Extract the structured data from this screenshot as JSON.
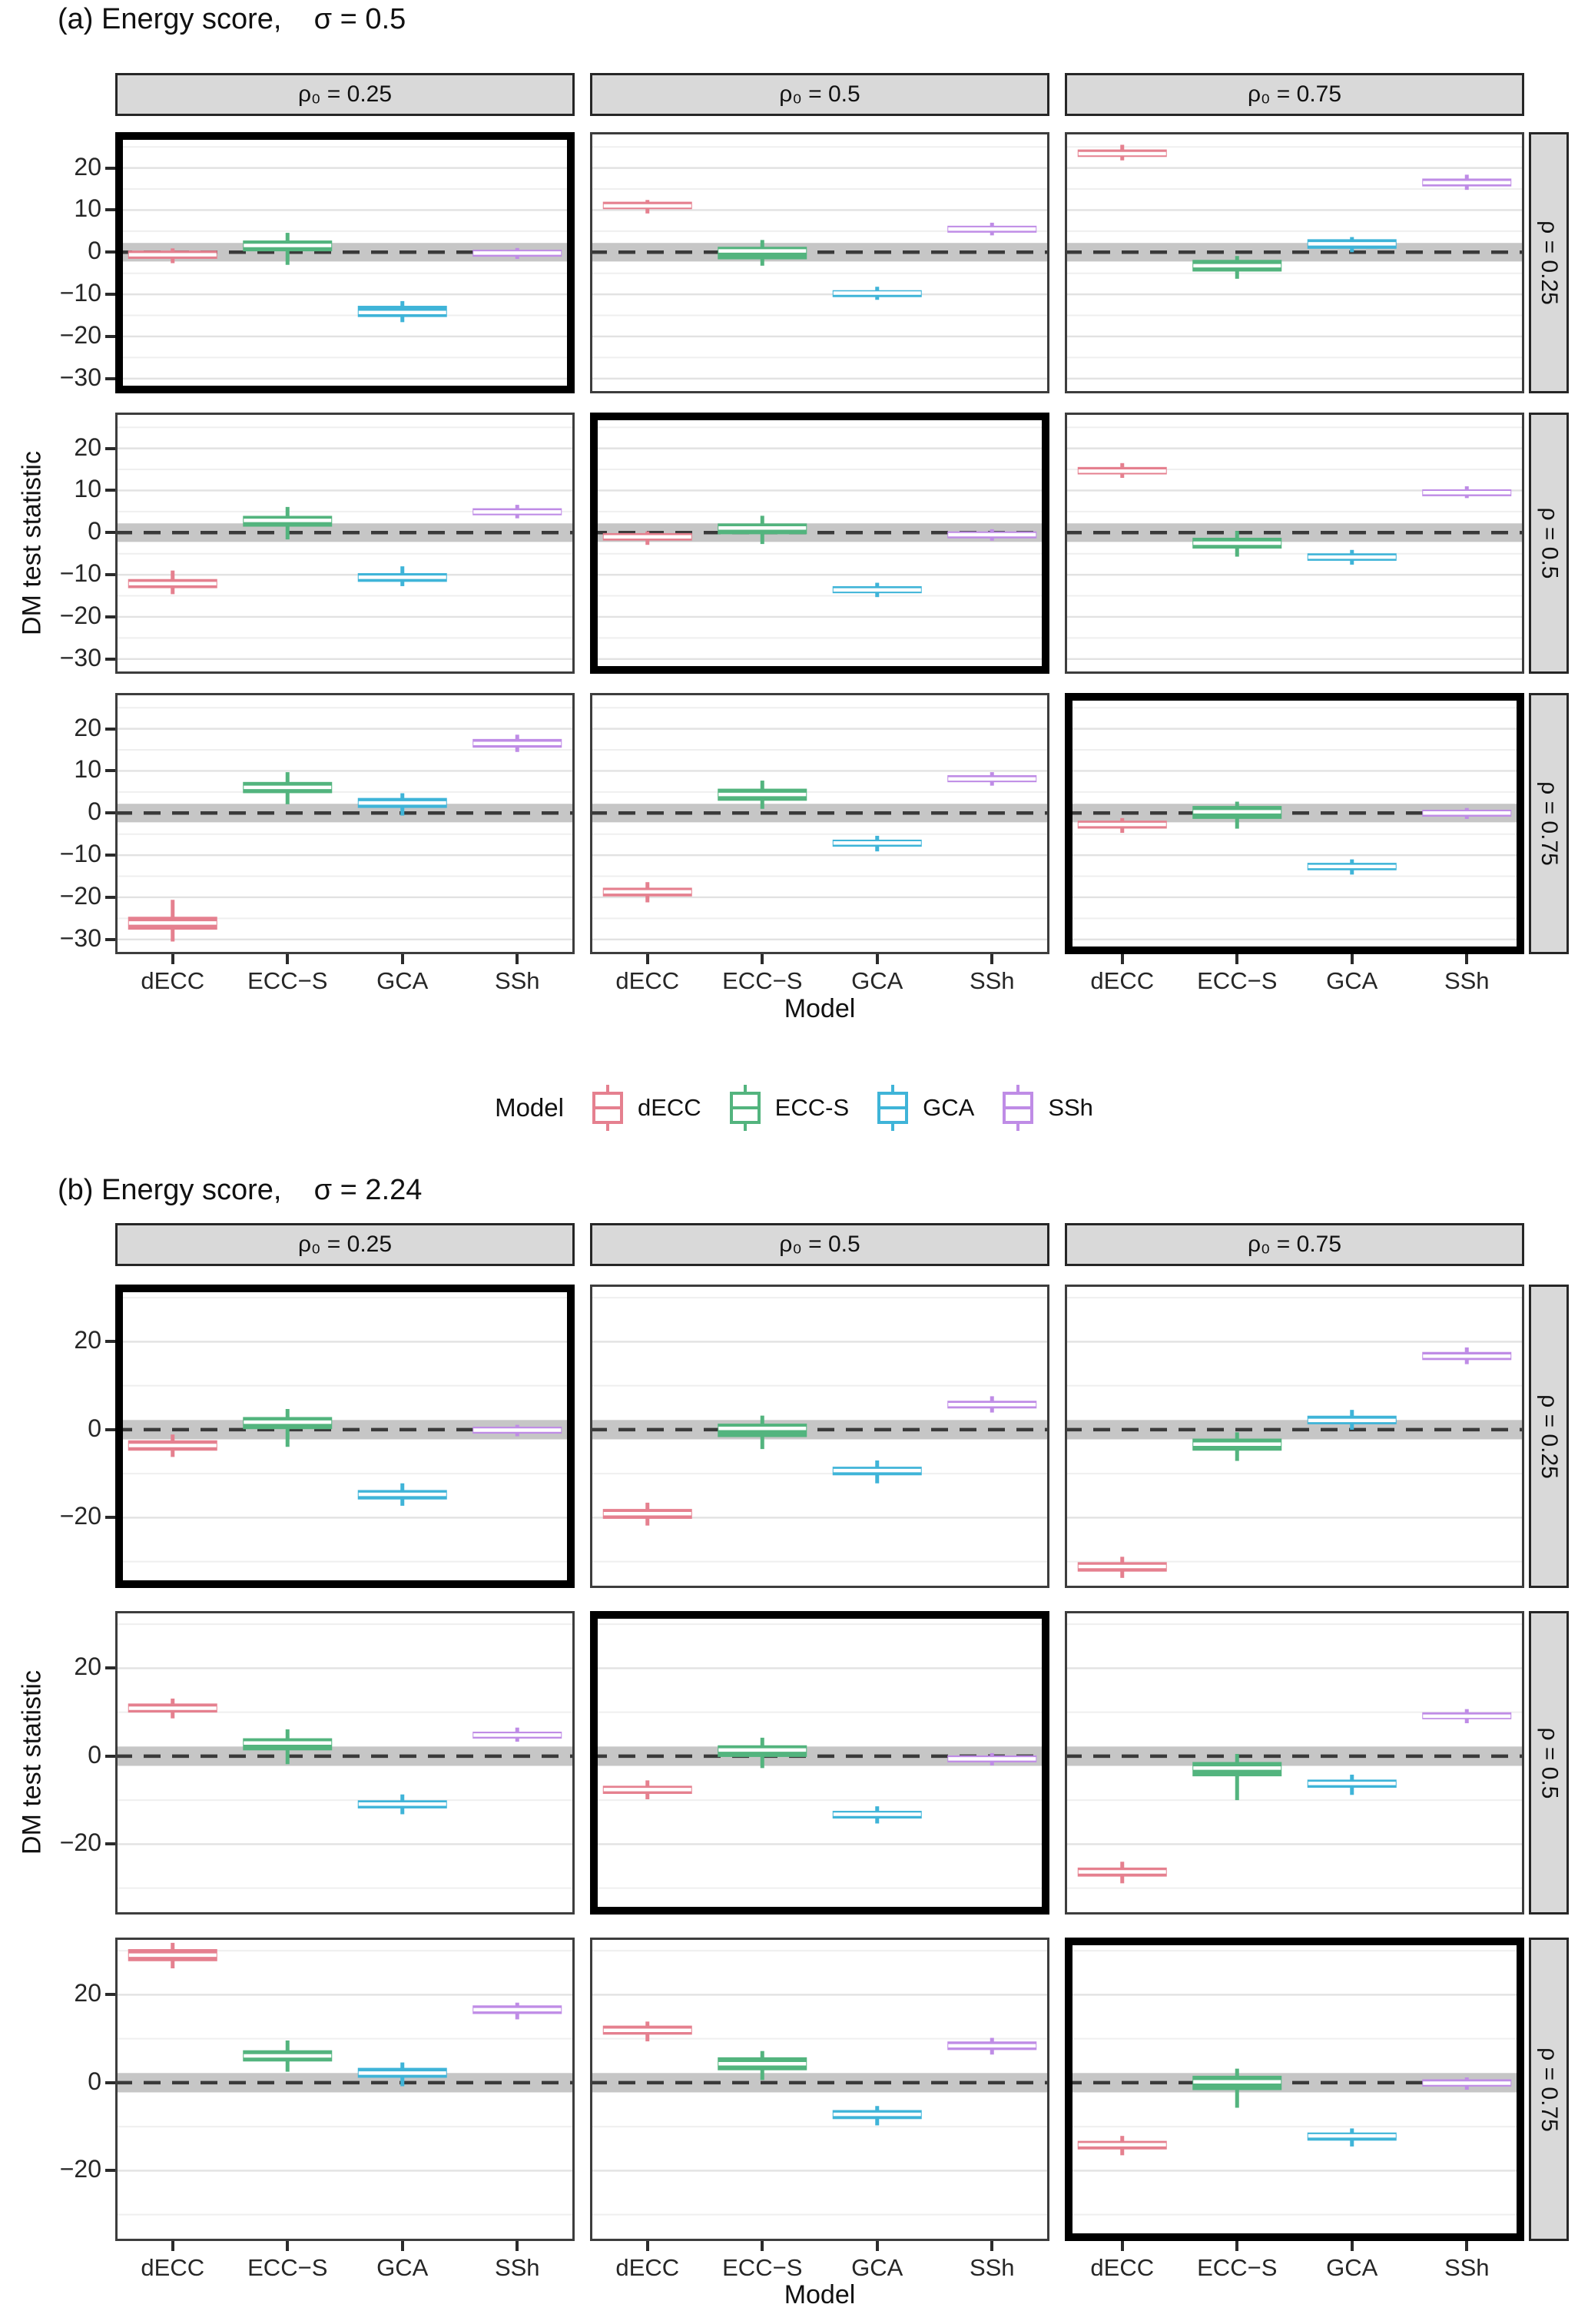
{
  "legend": {
    "title": "Model",
    "entries": [
      {
        "label": "dECC",
        "color": "#E5808F"
      },
      {
        "label": "ECC-S",
        "color": "#53B47E"
      },
      {
        "label": "GCA",
        "color": "#3FB4D8"
      },
      {
        "label": "SSh",
        "color": "#BF8CE6"
      }
    ]
  },
  "chart_data": {
    "type": "boxplot-facets",
    "models": [
      "dECC",
      "ECC-S",
      "GCA",
      "SSh"
    ],
    "band": [
      -2.2,
      2.2
    ],
    "zero_line": 0,
    "panels": [
      {
        "id": "a",
        "title": "(a) Energy score,    σ = 0.5",
        "ylabel": "DM test statistic",
        "xlabel": "Model",
        "col_labels": [
          "ρ₀ = 0.25",
          "ρ₀ = 0.5",
          "ρ₀ = 0.75"
        ],
        "row_labels": [
          "ρ = 0.25",
          "ρ = 0.5",
          "ρ = 0.75"
        ],
        "ylim": [
          -33.5,
          28.5
        ],
        "yticks": [
          20,
          10,
          0,
          -10,
          -20,
          -30
        ],
        "grid_minor": [
          25,
          15,
          5,
          -5,
          -15,
          -25
        ],
        "facets": [
          {
            "row": 0,
            "col": 0,
            "highlight": true,
            "boxes": [
              [
                -2.6,
                -1.4,
                -0.6,
                0.2,
                0.9
              ],
              [
                -3.0,
                0.4,
                1.6,
                2.6,
                4.6
              ],
              [
                -16.6,
                -15.2,
                -14.3,
                -12.9,
                -11.6
              ],
              [
                -1.6,
                -0.8,
                -0.2,
                0.4,
                1.0
              ]
            ]
          },
          {
            "row": 0,
            "col": 1,
            "highlight": false,
            "boxes": [
              [
                9.2,
                10.4,
                11.0,
                11.8,
                12.4
              ],
              [
                -3.2,
                -1.5,
                0.3,
                1.1,
                2.9
              ],
              [
                -11.3,
                -10.3,
                -9.7,
                -9.2,
                -8.2
              ],
              [
                4.0,
                4.9,
                5.5,
                6.1,
                7.0
              ]
            ]
          },
          {
            "row": 0,
            "col": 2,
            "highlight": false,
            "boxes": [
              [
                21.8,
                22.8,
                23.4,
                24.2,
                25.5
              ],
              [
                -6.3,
                -4.4,
                -3.2,
                -2.0,
                -0.9
              ],
              [
                0.0,
                1.0,
                2.0,
                2.9,
                3.6
              ],
              [
                14.8,
                15.8,
                16.5,
                17.3,
                18.4
              ]
            ]
          },
          {
            "row": 1,
            "col": 0,
            "highlight": false,
            "boxes": [
              [
                -14.6,
                -13.0,
                -12.1,
                -11.2,
                -9.0
              ],
              [
                -1.6,
                1.6,
                2.9,
                3.8,
                6.1
              ],
              [
                -12.7,
                -11.5,
                -10.6,
                -9.8,
                -8.0
              ],
              [
                3.4,
                4.3,
                4.9,
                5.6,
                6.6
              ]
            ]
          },
          {
            "row": 1,
            "col": 1,
            "highlight": true,
            "boxes": [
              [
                -2.9,
                -1.7,
                -1.0,
                -0.3,
                0.3
              ],
              [
                -2.7,
                -0.2,
                1.1,
                2.0,
                4.0
              ],
              [
                -15.3,
                -14.2,
                -13.6,
                -12.9,
                -11.9
              ],
              [
                -1.9,
                -1.1,
                -0.5,
                0.1,
                0.8
              ]
            ]
          },
          {
            "row": 1,
            "col": 2,
            "highlight": false,
            "boxes": [
              [
                13.0,
                14.0,
                14.6,
                15.4,
                16.5
              ],
              [
                -5.7,
                -3.6,
                -2.5,
                -1.4,
                0.4
              ],
              [
                -7.6,
                -6.5,
                -5.8,
                -5.1,
                -4.1
              ],
              [
                8.2,
                9.0,
                9.5,
                10.1,
                11.0
              ]
            ]
          },
          {
            "row": 2,
            "col": 0,
            "highlight": false,
            "boxes": [
              [
                -30.5,
                -27.5,
                -26.1,
                -24.8,
                -20.6
              ],
              [
                2.1,
                4.9,
                6.1,
                7.2,
                9.7
              ],
              [
                -0.6,
                1.4,
                2.4,
                3.4,
                4.7
              ],
              [
                14.5,
                15.7,
                16.5,
                17.4,
                18.6
              ]
            ]
          },
          {
            "row": 2,
            "col": 1,
            "highlight": false,
            "boxes": [
              [
                -21.2,
                -19.6,
                -18.7,
                -17.9,
                -16.4
              ],
              [
                1.0,
                3.1,
                4.4,
                5.6,
                7.7
              ],
              [
                -9.1,
                -7.8,
                -7.1,
                -6.5,
                -5.4
              ],
              [
                6.5,
                7.5,
                8.1,
                8.8,
                9.7
              ]
            ]
          },
          {
            "row": 2,
            "col": 2,
            "highlight": true,
            "boxes": [
              [
                -4.7,
                -3.5,
                -2.7,
                -2.0,
                -1.2
              ],
              [
                -3.7,
                -1.2,
                0.3,
                1.5,
                2.7
              ],
              [
                -14.6,
                -13.4,
                -12.7,
                -12.0,
                -11.0
              ],
              [
                -1.4,
                -0.6,
                0.0,
                0.6,
                1.2
              ]
            ]
          }
        ]
      },
      {
        "id": "b",
        "title": "(b) Energy score,    σ = 2.24",
        "ylabel": "DM test statistic",
        "xlabel": "Model",
        "col_labels": [
          "ρ₀ = 0.25",
          "ρ₀ = 0.5",
          "ρ₀ = 0.75"
        ],
        "row_labels": [
          "ρ = 0.25",
          "ρ = 0.5",
          "ρ = 0.75"
        ],
        "ylim": [
          -36,
          33
        ],
        "yticks": [
          20,
          0,
          -20
        ],
        "grid_minor": [
          30,
          10,
          -10,
          -30
        ],
        "facets": [
          {
            "row": 0,
            "col": 0,
            "highlight": true,
            "boxes": [
              [
                -6.2,
                -4.6,
                -3.6,
                -2.6,
                -1.1
              ],
              [
                -3.9,
                0.3,
                1.7,
                2.7,
                4.7
              ],
              [
                -17.3,
                -15.7,
                -14.7,
                -13.9,
                -12.2
              ],
              [
                -1.5,
                -0.7,
                -0.1,
                0.5,
                1.1
              ]
            ]
          },
          {
            "row": 0,
            "col": 1,
            "highlight": false,
            "boxes": [
              [
                -21.8,
                -20.1,
                -19.1,
                -18.2,
                -16.6
              ],
              [
                -4.4,
                -1.5,
                0.3,
                1.2,
                3.2
              ],
              [
                -12.2,
                -10.2,
                -9.3,
                -8.6,
                -7.0
              ],
              [
                3.9,
                5.0,
                5.7,
                6.4,
                7.6
              ]
            ]
          },
          {
            "row": 0,
            "col": 2,
            "highlight": false,
            "boxes": [
              [
                -33.7,
                -32.1,
                -31.1,
                -30.3,
                -28.9
              ],
              [
                -7.1,
                -4.6,
                -3.3,
                -2.2,
                -0.6
              ],
              [
                0.0,
                1.4,
                2.1,
                3.0,
                4.5
              ],
              [
                14.9,
                16.0,
                16.7,
                17.5,
                18.7
              ]
            ]
          },
          {
            "row": 1,
            "col": 0,
            "highlight": false,
            "boxes": [
              [
                8.6,
                10.1,
                10.9,
                11.8,
                13.1
              ],
              [
                -1.8,
                1.5,
                3.0,
                3.9,
                6.1
              ],
              [
                -13.2,
                -11.7,
                -10.9,
                -10.2,
                -8.7
              ],
              [
                3.3,
                4.2,
                4.8,
                5.4,
                6.5
              ]
            ]
          },
          {
            "row": 1,
            "col": 1,
            "highlight": true,
            "boxes": [
              [
                -9.8,
                -8.4,
                -7.6,
                -6.9,
                -5.5
              ],
              [
                -2.7,
                0.0,
                1.4,
                2.3,
                4.2
              ],
              [
                -15.3,
                -14.0,
                -13.2,
                -12.6,
                -11.4
              ],
              [
                -2.1,
                -1.2,
                -0.6,
                0.0,
                0.7
              ]
            ]
          },
          {
            "row": 1,
            "col": 2,
            "highlight": false,
            "boxes": [
              [
                -28.9,
                -27.2,
                -26.3,
                -25.5,
                -24.0
              ],
              [
                -10.0,
                -4.4,
                -2.7,
                -1.5,
                0.5
              ],
              [
                -8.8,
                -7.0,
                -6.2,
                -5.5,
                -4.2
              ],
              [
                7.5,
                8.6,
                9.1,
                9.8,
                10.7
              ]
            ]
          },
          {
            "row": 2,
            "col": 0,
            "highlight": false,
            "boxes": [
              [
                26.0,
                27.8,
                29.0,
                30.2,
                31.8
              ],
              [
                2.5,
                5.0,
                6.1,
                7.2,
                9.6
              ],
              [
                -0.8,
                1.3,
                2.2,
                3.2,
                4.6
              ],
              [
                14.4,
                15.8,
                16.6,
                17.4,
                18.2
              ]
            ]
          },
          {
            "row": 2,
            "col": 1,
            "highlight": false,
            "boxes": [
              [
                9.4,
                11.1,
                11.9,
                12.8,
                13.9
              ],
              [
                0.6,
                3.0,
                4.3,
                5.6,
                7.2
              ],
              [
                -9.7,
                -8.1,
                -7.2,
                -6.4,
                -5.3
              ],
              [
                6.4,
                7.6,
                8.4,
                9.2,
                10.2
              ]
            ]
          },
          {
            "row": 2,
            "col": 2,
            "highlight": true,
            "boxes": [
              [
                -16.5,
                -15.0,
                -14.1,
                -13.4,
                -12.1
              ],
              [
                -5.7,
                -1.5,
                0.2,
                1.4,
                3.2
              ],
              [
                -14.5,
                -13.0,
                -12.1,
                -11.5,
                -10.4
              ],
              [
                -1.6,
                -0.7,
                -0.1,
                0.6,
                1.2
              ]
            ]
          }
        ]
      }
    ]
  }
}
